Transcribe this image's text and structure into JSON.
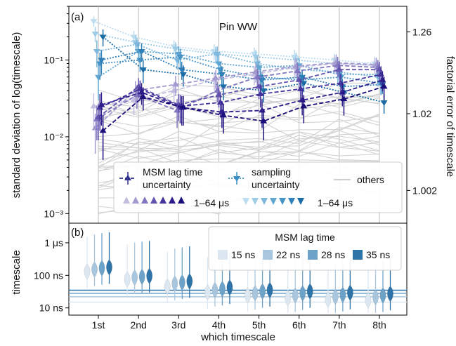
{
  "figure": {
    "panel_a_tag": "(a)",
    "panel_b_tag": "(b)",
    "xlabel": "which timescale",
    "categories": [
      "1st",
      "2nd",
      "3rd",
      "4th",
      "5th",
      "6th",
      "7th",
      "8th"
    ]
  },
  "chart_data": [
    {
      "panel": "a",
      "type": "line",
      "title": "Pin WW",
      "ylabel": "standard deviation of log(timescale)",
      "ylabel_right": "factorial error of timescale",
      "yscale": "log",
      "ylim": [
        0.00075,
        0.5
      ],
      "yticks": [
        0.001,
        0.01,
        0.1
      ],
      "ytick_labels": [
        "10⁻³",
        "10⁻²",
        "10⁻¹"
      ],
      "right_ticks": [
        {
          "y": 0.002,
          "label": "1.002"
        },
        {
          "y": 0.02,
          "label": "1.02"
        },
        {
          "y": 0.233,
          "label": "1.26"
        }
      ],
      "grid": true,
      "legend": {
        "placement": "bottom-right",
        "entries": [
          {
            "label_lines": [
              "MSM lag time",
              "uncertainty"
            ],
            "style": "dashed-triangle-up",
            "color": "#2e2f8f"
          },
          {
            "label_lines": [
              "sampling",
              "uncertainty"
            ],
            "style": "dotted-triangle-down",
            "color": "#3a8fc4"
          },
          {
            "label_lines": [
              "others"
            ],
            "style": "solid",
            "color": "#c8c8c8"
          }
        ],
        "lag_range_text": "1–64 μs",
        "sampling_range_text": "1–64 μs"
      },
      "series_colors": {
        "msm": [
          "#c3bde0",
          "#a39ad0",
          "#8176bf",
          "#6253ad",
          "#45349c",
          "#2d1e8b",
          "#1a0f7a"
        ],
        "sampling": [
          "#bcdcef",
          "#9ecbe6",
          "#7fb8dc",
          "#62a6d2",
          "#4693c6",
          "#2f80b8",
          "#1c6ca6"
        ],
        "others": "#d2d2d2"
      },
      "msm_series": [
        {
          "values": [
            0.025,
            0.03,
            0.04,
            0.055,
            0.065,
            0.08,
            0.09,
            0.085
          ],
          "err": [
            0.012,
            0.011,
            0.012,
            0.015,
            0.018,
            0.022,
            0.025,
            0.02
          ]
        },
        {
          "values": [
            0.013,
            0.04,
            0.048,
            0.058,
            0.07,
            0.083,
            0.092,
            0.087
          ],
          "err": [
            0.007,
            0.013,
            0.014,
            0.016,
            0.019,
            0.022,
            0.026,
            0.02
          ]
        },
        {
          "values": [
            0.017,
            0.035,
            0.022,
            0.04,
            0.06,
            0.072,
            0.085,
            0.08
          ],
          "err": [
            0.008,
            0.012,
            0.009,
            0.012,
            0.017,
            0.02,
            0.025,
            0.02
          ]
        },
        {
          "values": [
            0.018,
            0.045,
            0.026,
            0.035,
            0.045,
            0.055,
            0.075,
            0.075
          ],
          "err": [
            0.009,
            0.013,
            0.01,
            0.011,
            0.014,
            0.016,
            0.022,
            0.02
          ]
        },
        {
          "values": [
            0.024,
            0.042,
            0.025,
            0.028,
            0.036,
            0.042,
            0.05,
            0.065
          ],
          "err": [
            0.012,
            0.012,
            0.01,
            0.01,
            0.012,
            0.014,
            0.016,
            0.018
          ]
        },
        {
          "values": [
            0.026,
            0.038,
            0.024,
            0.021,
            0.022,
            0.03,
            0.038,
            0.055
          ],
          "err": [
            0.012,
            0.012,
            0.01,
            0.008,
            0.009,
            0.011,
            0.013,
            0.016
          ]
        },
        {
          "values": [
            0.012,
            0.033,
            0.024,
            0.019,
            0.016,
            0.025,
            0.031,
            0.045
          ],
          "err": [
            0.007,
            0.011,
            0.01,
            0.008,
            0.007,
            0.01,
            0.012,
            0.015
          ]
        }
      ],
      "sampling_series": [
        {
          "values": [
            0.32,
            0.2,
            0.15,
            0.13,
            0.12,
            0.11,
            0.1,
            0.09
          ],
          "err": [
            0.05,
            0.04,
            0.03,
            0.03,
            0.025,
            0.025,
            0.02,
            0.02
          ]
        },
        {
          "values": [
            0.22,
            0.17,
            0.14,
            0.12,
            0.11,
            0.1,
            0.09,
            0.085
          ],
          "err": [
            0.05,
            0.04,
            0.03,
            0.03,
            0.025,
            0.025,
            0.02,
            0.02
          ]
        },
        {
          "values": [
            0.13,
            0.16,
            0.1,
            0.12,
            0.09,
            0.075,
            0.07,
            0.06
          ],
          "err": [
            0.05,
            0.035,
            0.025,
            0.03,
            0.02,
            0.02,
            0.02,
            0.015
          ]
        },
        {
          "values": [
            0.06,
            0.13,
            0.12,
            0.09,
            0.08,
            0.085,
            0.065,
            0.065
          ],
          "err": [
            0.03,
            0.035,
            0.03,
            0.025,
            0.02,
            0.02,
            0.018,
            0.015
          ]
        },
        {
          "values": [
            0.09,
            0.1,
            0.11,
            0.075,
            0.06,
            0.055,
            0.06,
            0.05
          ],
          "err": [
            0.035,
            0.03,
            0.03,
            0.02,
            0.018,
            0.015,
            0.015,
            0.015
          ]
        },
        {
          "values": [
            0.1,
            0.13,
            0.075,
            0.065,
            0.055,
            0.06,
            0.045,
            0.048
          ],
          "err": [
            0.035,
            0.035,
            0.02,
            0.018,
            0.015,
            0.015,
            0.012,
            0.012
          ]
        },
        {
          "values": [
            0.2,
            0.075,
            0.065,
            0.045,
            0.04,
            0.05,
            0.038,
            0.028
          ],
          "err": [
            0.05,
            0.025,
            0.02,
            0.015,
            0.012,
            0.012,
            0.01,
            0.008
          ]
        }
      ]
    },
    {
      "panel": "b",
      "type": "violin",
      "ylabel": "timescale",
      "yscale": "log",
      "ylim_ns": [
        6,
        4000
      ],
      "yticks_ns": [
        10,
        100,
        1000
      ],
      "ytick_labels": [
        "10 ns",
        "100 ns",
        "1 μs"
      ],
      "legend": {
        "placement": "top-right",
        "title": "MSM lag time",
        "entries": [
          "15 ns",
          "22 ns",
          "28 ns",
          "35 ns"
        ]
      },
      "lag_colors": [
        "#dde7f1",
        "#a8c6de",
        "#6ea3c9",
        "#2f74a8"
      ],
      "lag_lines_ns": [
        15,
        22,
        28,
        35
      ],
      "medians_ns": [
        [
          130,
          75,
          45,
          30,
          24,
          20,
          18,
          17
        ],
        [
          150,
          85,
          55,
          35,
          28,
          24,
          22,
          21
        ],
        [
          165,
          90,
          60,
          38,
          32,
          28,
          25,
          24
        ],
        [
          175,
          95,
          65,
          42,
          35,
          32,
          29,
          27
        ]
      ]
    }
  ]
}
